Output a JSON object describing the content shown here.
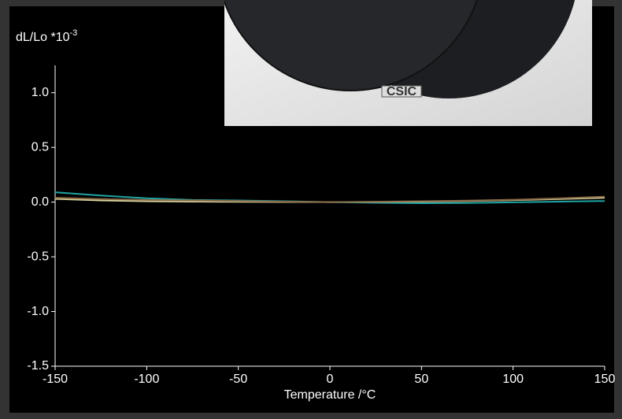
{
  "chart_data": {
    "type": "line",
    "y_label": "dL/Lo *10",
    "y_label_superscript": "-3",
    "x_label": "Temperature /°C",
    "x": [
      -150,
      -125,
      -100,
      -75,
      -50,
      -25,
      0,
      25,
      50,
      75,
      100,
      125,
      150
    ],
    "series": [
      {
        "color": "#1fa3a3",
        "values": [
          0.09,
          0.06,
          0.035,
          0.02,
          0.015,
          0.008,
          0.0,
          -0.005,
          -0.01,
          -0.008,
          -0.002,
          0.005,
          0.01
        ]
      },
      {
        "color": "#d9d6a0",
        "values": [
          0.03,
          0.015,
          0.008,
          0.005,
          0.003,
          0.001,
          0.0,
          0.002,
          0.005,
          0.01,
          0.018,
          0.028,
          0.04
        ]
      },
      {
        "color": "#8a6a48",
        "values": [
          0.04,
          0.028,
          0.02,
          0.015,
          0.01,
          0.005,
          0.0,
          0.004,
          0.008,
          0.014,
          0.022,
          0.034,
          0.05
        ]
      }
    ],
    "xlim": [
      -150,
      150
    ],
    "xticks": [
      -150,
      -100,
      -50,
      0,
      50,
      100,
      150
    ],
    "ylim": [
      -1.5,
      1.25
    ],
    "yticks": [
      {
        "value": -1.5,
        "label": "-1.5"
      },
      {
        "value": -1.0,
        "label": "-1.0"
      },
      {
        "value": -0.5,
        "label": "-0.5"
      },
      {
        "value": 0.0,
        "label": "0.0"
      },
      {
        "value": 0.5,
        "label": "0.5"
      },
      {
        "value": 1.0,
        "label": "1.0"
      }
    ]
  },
  "photo": {
    "label": "CSIC"
  }
}
